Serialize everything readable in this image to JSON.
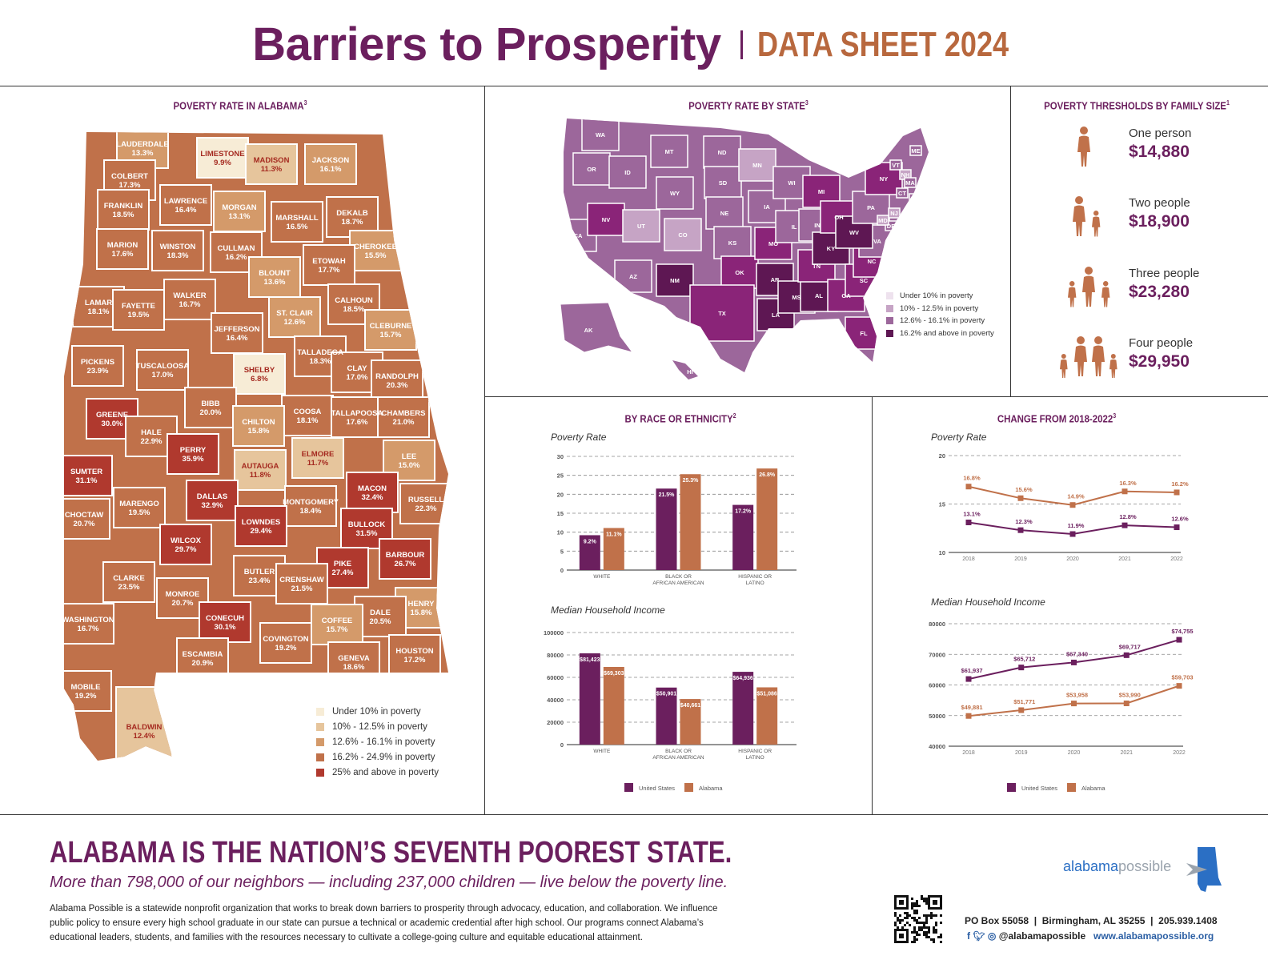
{
  "header": {
    "title": "Barriers to Prosperity",
    "subtitle": "DATA SHEET 2024"
  },
  "colors": {
    "purple": "#6b1f5e",
    "orange": "#c0714a",
    "brown_title": "#b8683e",
    "al_levels": [
      "#f7ecd6",
      "#e6c59c",
      "#d49a6a",
      "#c0714a",
      "#b0392e"
    ],
    "us_levels": [
      "#eee2ee",
      "#c6a4c5",
      "#9c679b",
      "#5e1753",
      "#8a2478"
    ]
  },
  "alabama_map": {
    "title": "POVERTY RATE IN ALABAMA",
    "title_note": "3",
    "legend": [
      "Under 10% in poverty",
      "10% - 12.5% in poverty",
      "12.6% - 16.1% in poverty",
      "16.2% - 24.9% in poverty",
      "25% and above in poverty"
    ],
    "counties": [
      {
        "name": "LAUDERDALE",
        "value": "13.3%",
        "level": 2
      },
      {
        "name": "LIMESTONE",
        "value": "9.9%",
        "level": 0
      },
      {
        "name": "MADISON",
        "value": "11.3%",
        "level": 1
      },
      {
        "name": "JACKSON",
        "value": "16.1%",
        "level": 2
      },
      {
        "name": "COLBERT",
        "value": "17.3%",
        "level": 3
      },
      {
        "name": "FRANKLIN",
        "value": "18.5%",
        "level": 3
      },
      {
        "name": "LAWRENCE",
        "value": "16.4%",
        "level": 3
      },
      {
        "name": "MORGAN",
        "value": "13.1%",
        "level": 2
      },
      {
        "name": "MARSHALL",
        "value": "16.5%",
        "level": 3
      },
      {
        "name": "DEKALB",
        "value": "18.7%",
        "level": 3
      },
      {
        "name": "MARION",
        "value": "17.6%",
        "level": 3
      },
      {
        "name": "WINSTON",
        "value": "18.3%",
        "level": 3
      },
      {
        "name": "CULLMAN",
        "value": "16.2%",
        "level": 3
      },
      {
        "name": "CHEROKEE",
        "value": "15.5%",
        "level": 2
      },
      {
        "name": "ETOWAH",
        "value": "17.7%",
        "level": 3
      },
      {
        "name": "BLOUNT",
        "value": "13.6%",
        "level": 2
      },
      {
        "name": "LAMAR",
        "value": "18.1%",
        "level": 3
      },
      {
        "name": "FAYETTE",
        "value": "19.5%",
        "level": 3
      },
      {
        "name": "WALKER",
        "value": "16.7%",
        "level": 3
      },
      {
        "name": "CALHOUN",
        "value": "18.5%",
        "level": 3
      },
      {
        "name": "ST. CLAIR",
        "value": "12.6%",
        "level": 2
      },
      {
        "name": "CLEBURNE",
        "value": "15.7%",
        "level": 2
      },
      {
        "name": "JEFFERSON",
        "value": "16.4%",
        "level": 3
      },
      {
        "name": "PICKENS",
        "value": "23.9%",
        "level": 3
      },
      {
        "name": "TUSCALOOSA",
        "value": "17.0%",
        "level": 3
      },
      {
        "name": "TALLADEGA",
        "value": "18.3%",
        "level": 3
      },
      {
        "name": "CLAY",
        "value": "17.0%",
        "level": 3
      },
      {
        "name": "RANDOLPH",
        "value": "20.3%",
        "level": 3
      },
      {
        "name": "SHELBY",
        "value": "6.8%",
        "level": 0
      },
      {
        "name": "BIBB",
        "value": "20.0%",
        "level": 3
      },
      {
        "name": "COOSA",
        "value": "18.1%",
        "level": 3
      },
      {
        "name": "TALLAPOOSA",
        "value": "17.6%",
        "level": 3
      },
      {
        "name": "CHAMBERS",
        "value": "21.0%",
        "level": 3
      },
      {
        "name": "GREENE",
        "value": "30.0%",
        "level": 4
      },
      {
        "name": "HALE",
        "value": "22.9%",
        "level": 3
      },
      {
        "name": "CHILTON",
        "value": "15.8%",
        "level": 2
      },
      {
        "name": "PERRY",
        "value": "35.9%",
        "level": 4
      },
      {
        "name": "ELMORE",
        "value": "11.7%",
        "level": 1
      },
      {
        "name": "LEE",
        "value": "15.0%",
        "level": 2
      },
      {
        "name": "SUMTER",
        "value": "31.1%",
        "level": 4
      },
      {
        "name": "AUTAUGA",
        "value": "11.8%",
        "level": 1
      },
      {
        "name": "MACON",
        "value": "32.4%",
        "level": 4
      },
      {
        "name": "RUSSELL",
        "value": "22.3%",
        "level": 3
      },
      {
        "name": "MARENGO",
        "value": "19.5%",
        "level": 3
      },
      {
        "name": "DALLAS",
        "value": "32.9%",
        "level": 4
      },
      {
        "name": "MONTGOMERY",
        "value": "18.4%",
        "level": 3
      },
      {
        "name": "CHOCTAW",
        "value": "20.7%",
        "level": 3
      },
      {
        "name": "LOWNDES",
        "value": "29.4%",
        "level": 4
      },
      {
        "name": "BULLOCK",
        "value": "31.5%",
        "level": 4
      },
      {
        "name": "WILCOX",
        "value": "29.7%",
        "level": 4
      },
      {
        "name": "BARBOUR",
        "value": "26.7%",
        "level": 4
      },
      {
        "name": "PIKE",
        "value": "27.4%",
        "level": 4
      },
      {
        "name": "BUTLER",
        "value": "23.4%",
        "level": 3
      },
      {
        "name": "CLARKE",
        "value": "23.5%",
        "level": 3
      },
      {
        "name": "CRENSHAW",
        "value": "21.5%",
        "level": 3
      },
      {
        "name": "MONROE",
        "value": "20.7%",
        "level": 3
      },
      {
        "name": "HENRY",
        "value": "15.8%",
        "level": 2
      },
      {
        "name": "WASHINGTON",
        "value": "16.7%",
        "level": 3
      },
      {
        "name": "CONECUH",
        "value": "30.1%",
        "level": 4
      },
      {
        "name": "DALE",
        "value": "20.5%",
        "level": 3
      },
      {
        "name": "COFFEE",
        "value": "15.7%",
        "level": 2
      },
      {
        "name": "COVINGTON",
        "value": "19.2%",
        "level": 3
      },
      {
        "name": "ESCAMBIA",
        "value": "20.9%",
        "level": 3
      },
      {
        "name": "HOUSTON",
        "value": "17.2%",
        "level": 3
      },
      {
        "name": "GENEVA",
        "value": "18.6%",
        "level": 3
      },
      {
        "name": "MOBILE",
        "value": "19.2%",
        "level": 3
      },
      {
        "name": "BALDWIN",
        "value": "12.4%",
        "level": 1
      }
    ]
  },
  "us_map": {
    "title": "POVERTY RATE BY STATE",
    "title_note": "3",
    "legend": [
      "Under 10% in poverty",
      "10% - 12.5% in poverty",
      "12.6% - 16.1% in poverty",
      "16.2% and above in poverty"
    ],
    "states": [
      {
        "abbr": "WA",
        "level": 2
      },
      {
        "abbr": "OR",
        "level": 2
      },
      {
        "abbr": "CA",
        "level": 2
      },
      {
        "abbr": "NV",
        "level": 4
      },
      {
        "abbr": "ID",
        "level": 2
      },
      {
        "abbr": "MT",
        "level": 2
      },
      {
        "abbr": "WY",
        "level": 2
      },
      {
        "abbr": "UT",
        "level": 1
      },
      {
        "abbr": "CO",
        "level": 1
      },
      {
        "abbr": "AZ",
        "level": 2
      },
      {
        "abbr": "NM",
        "level": 3
      },
      {
        "abbr": "ND",
        "level": 2
      },
      {
        "abbr": "SD",
        "level": 2
      },
      {
        "abbr": "NE",
        "level": 2
      },
      {
        "abbr": "KS",
        "level": 2
      },
      {
        "abbr": "OK",
        "level": 4
      },
      {
        "abbr": "TX",
        "level": 4
      },
      {
        "abbr": "MN",
        "level": 1
      },
      {
        "abbr": "IA",
        "level": 2
      },
      {
        "abbr": "MO",
        "level": 4
      },
      {
        "abbr": "AR",
        "level": 3
      },
      {
        "abbr": "LA",
        "level": 3
      },
      {
        "abbr": "WI",
        "level": 2
      },
      {
        "abbr": "IL",
        "level": 2
      },
      {
        "abbr": "MS",
        "level": 3
      },
      {
        "abbr": "MI",
        "level": 4
      },
      {
        "abbr": "IN",
        "level": 2
      },
      {
        "abbr": "AL",
        "level": 3
      },
      {
        "abbr": "TN",
        "level": 4
      },
      {
        "abbr": "KY",
        "level": 3
      },
      {
        "abbr": "OH",
        "level": 4
      },
      {
        "abbr": "GA",
        "level": 4
      },
      {
        "abbr": "FL",
        "level": 4
      },
      {
        "abbr": "SC",
        "level": 4
      },
      {
        "abbr": "NC",
        "level": 4
      },
      {
        "abbr": "VA",
        "level": 2
      },
      {
        "abbr": "WV",
        "level": 3
      },
      {
        "abbr": "PA",
        "level": 2
      },
      {
        "abbr": "NY",
        "level": 4
      },
      {
        "abbr": "ME",
        "level": 2
      },
      {
        "abbr": "VT",
        "level": 2
      },
      {
        "abbr": "NH",
        "level": 1
      },
      {
        "abbr": "MA",
        "level": 2
      },
      {
        "abbr": "CT",
        "level": 2
      },
      {
        "abbr": "RI",
        "level": 2
      },
      {
        "abbr": "NJ",
        "level": 1
      },
      {
        "abbr": "DE",
        "level": 2
      },
      {
        "abbr": "MD",
        "level": 1
      },
      {
        "abbr": "AK",
        "level": 2
      },
      {
        "abbr": "HI",
        "level": 2
      }
    ]
  },
  "thresholds": {
    "title": "POVERTY THRESHOLDS BY FAMILY SIZE",
    "title_note": "1",
    "items": [
      {
        "label": "One person",
        "amount": "$14,880",
        "people": 1
      },
      {
        "label": "Two people",
        "amount": "$18,900",
        "people": 2
      },
      {
        "label": "Three people",
        "amount": "$23,280",
        "people": 3
      },
      {
        "label": "Four people",
        "amount": "$29,950",
        "people": 4
      }
    ]
  },
  "race_section": {
    "title": "BY RACE OR ETHNICITY",
    "title_note": "2"
  },
  "change_section": {
    "title": "CHANGE FROM 2018-2022",
    "title_note": "3"
  },
  "chart_data": [
    {
      "id": "race_poverty",
      "type": "bar",
      "title": "Poverty Rate",
      "categories": [
        [
          "WHITE"
        ],
        [
          "BLACK OR",
          "AFRICAN AMERICAN"
        ],
        [
          "HISPANIC OR",
          "LATINO"
        ]
      ],
      "ylim": [
        0,
        30
      ],
      "yticks": [
        "0",
        "5",
        "10",
        "15",
        "20",
        "25",
        "30"
      ],
      "series": [
        {
          "name": "United States",
          "values": [
            9.2,
            21.5,
            17.2
          ],
          "labels": [
            "9.2%",
            "21.5%",
            "17.2%"
          ]
        },
        {
          "name": "Alabama",
          "values": [
            11.1,
            25.3,
            26.8
          ],
          "labels": [
            "11.1%",
            "25.3%",
            "26.8%"
          ]
        }
      ],
      "grid": true
    },
    {
      "id": "race_income",
      "type": "bar",
      "title": "Median Household Income",
      "categories": [
        [
          "WHITE"
        ],
        [
          "BLACK OR",
          "AFRICAN AMERICAN"
        ],
        [
          "HISPANIC OR",
          "LATINO"
        ]
      ],
      "ylim": [
        0,
        100000
      ],
      "yticks": [
        "0",
        "20000",
        "40000",
        "60000",
        "80000",
        "100000"
      ],
      "series": [
        {
          "name": "United States",
          "values": [
            81423,
            50901,
            64936
          ],
          "labels": [
            "$81,423",
            "$50,901",
            "$64,936"
          ]
        },
        {
          "name": "Alabama",
          "values": [
            69303,
            40661,
            51086
          ],
          "labels": [
            "$69,303",
            "$40,661",
            "$51,086"
          ]
        }
      ],
      "grid": true,
      "legend": [
        "United States",
        "Alabama"
      ]
    },
    {
      "id": "change_poverty",
      "type": "line",
      "title": "Poverty Rate",
      "x": [
        "2018",
        "2019",
        "2020",
        "2021",
        "2022"
      ],
      "ylim": [
        10,
        20
      ],
      "yticks": [
        "10",
        "15",
        "20"
      ],
      "series": [
        {
          "name": "United States",
          "values": [
            13.1,
            12.3,
            11.9,
            12.8,
            12.6
          ],
          "labels": [
            "13.1%",
            "12.3%",
            "11.9%",
            "12.8%",
            "12.6%"
          ]
        },
        {
          "name": "Alabama",
          "values": [
            16.8,
            15.6,
            14.9,
            16.3,
            16.2
          ],
          "labels": [
            "16.8%",
            "15.6%",
            "14.9%",
            "16.3%",
            "16.2%"
          ]
        }
      ],
      "grid": true
    },
    {
      "id": "change_income",
      "type": "line",
      "title": "Median Household Income",
      "x": [
        "2018",
        "2019",
        "2020",
        "2021",
        "2022"
      ],
      "ylim": [
        40000,
        80000
      ],
      "yticks": [
        "40000",
        "50000",
        "60000",
        "70000",
        "80000"
      ],
      "series": [
        {
          "name": "United States",
          "values": [
            61937,
            65712,
            67340,
            69717,
            74755
          ],
          "labels": [
            "$61,937",
            "$65,712",
            "$67,340",
            "$69,717",
            "$74,755"
          ]
        },
        {
          "name": "Alabama",
          "values": [
            49881,
            51771,
            53958,
            53990,
            59703
          ],
          "labels": [
            "$49,881",
            "$51,771",
            "$53,958",
            "$53,990",
            "$59,703"
          ]
        }
      ],
      "grid": true,
      "legend": [
        "United States",
        "Alabama"
      ]
    }
  ],
  "footer": {
    "headline": "ALABAMA IS THE NATION’S SEVENTH POOREST STATE.",
    "subline": "More than 798,000 of our neighbors — including 237,000 children — live below the poverty line.",
    "paragraph": "Alabama Possible is a statewide nonprofit organization that works to break down barriers to prosperity through advocacy, education, and collaboration. We influence public policy to ensure every high school graduate in our state can pursue a technical or academic credential after high school. Our programs connect Alabama’s educational leaders, students, and families with the resources necessary to cultivate a college-going culture and equitable educational attainment.",
    "logo_a": "alabama",
    "logo_b": "possible",
    "address": "PO Box 55058  |  Birmingham, AL 35255  |  205.939.1408",
    "social_handle": "@alabamapossible",
    "website": "www.alabamapossible.org"
  }
}
